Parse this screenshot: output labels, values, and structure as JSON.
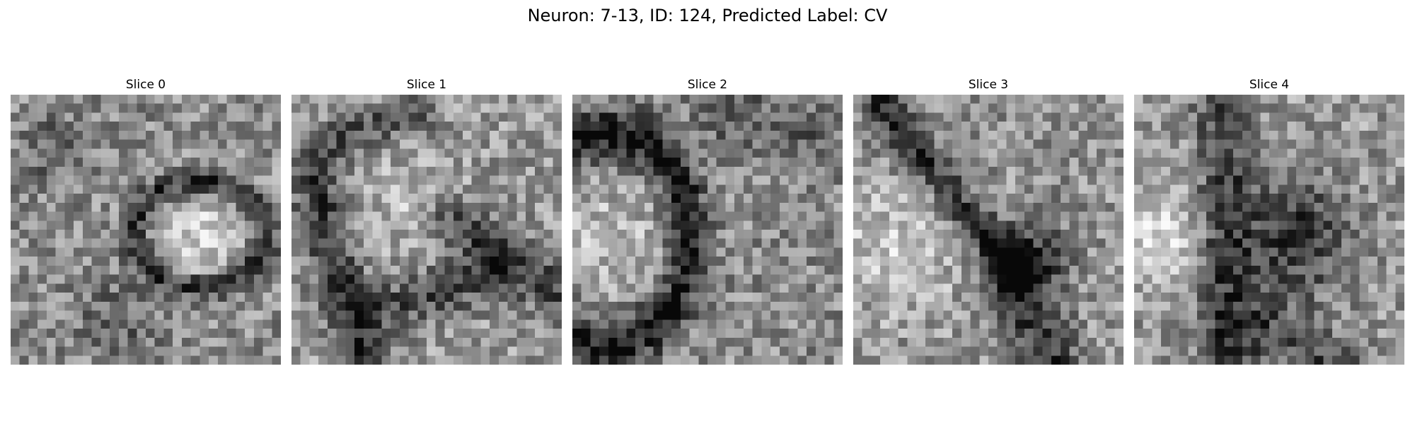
{
  "figure": {
    "title": "Neuron: 7-13, ID: 124, Predicted Label: CV"
  },
  "slices": [
    {
      "label": "Slice 0",
      "pattern": "ring-right"
    },
    {
      "label": "Slice 1",
      "pattern": "dark-x"
    },
    {
      "label": "Slice 2",
      "pattern": "dark-arc-left"
    },
    {
      "label": "Slice 3",
      "pattern": "diagonal-dark"
    },
    {
      "label": "Slice 4",
      "pattern": "dark-center"
    }
  ],
  "colormap": "gray"
}
